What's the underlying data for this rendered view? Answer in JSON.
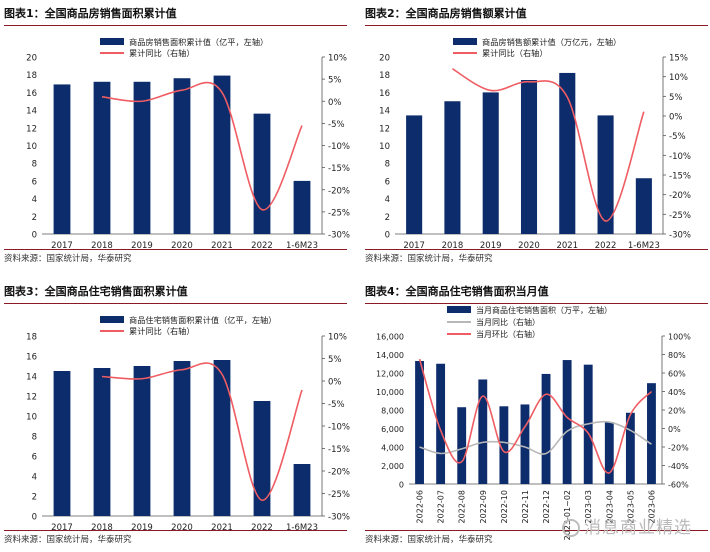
{
  "watermark": "消息商业精选",
  "chart_data": [
    {
      "type": "bar+line",
      "title": "图表1：全国商品房销售面积累计值",
      "source": "资料来源：国家统计局，华泰研究",
      "categories": [
        "2017",
        "2018",
        "2019",
        "2020",
        "2021",
        "2022",
        "1-6M23"
      ],
      "bar_series": {
        "name": "商品房销售面积累计值（亿平，左轴）",
        "values": [
          16.9,
          17.2,
          17.2,
          17.6,
          17.9,
          13.6,
          6.0
        ],
        "color": "#0c2c6b"
      },
      "line_series": {
        "name": "累计同比（右轴）",
        "values": [
          null,
          1.0,
          0.0,
          2.5,
          2.0,
          -24.5,
          -5.5
        ],
        "color": "#ef5d63"
      },
      "left_axis": {
        "ylim": [
          0,
          20
        ],
        "ticks": [
          0,
          2,
          4,
          6,
          8,
          10,
          12,
          14,
          16,
          18,
          20
        ],
        "labels": [
          "0",
          "2",
          "4",
          "6",
          "8",
          "10",
          "12",
          "14",
          "16",
          "18",
          "20"
        ]
      },
      "right_axis": {
        "ylim": [
          -30,
          10
        ],
        "ticks": [
          -30,
          -25,
          -20,
          -15,
          -10,
          -5,
          0,
          5,
          10
        ],
        "labels": [
          "-30%",
          "-25%",
          "-20%",
          "-15%",
          "-10%",
          "-5%",
          "0%",
          "5%",
          "10%"
        ]
      },
      "legend": "top-left"
    },
    {
      "type": "bar+line",
      "title": "图表2：全国商品房销售额累计值",
      "source": "资料来源：国家统计局，华泰研究",
      "categories": [
        "2017",
        "2018",
        "2019",
        "2020",
        "2021",
        "2022",
        "1-6M23"
      ],
      "bar_series": {
        "name": "商品房销售额累计值（万亿元，左轴）",
        "values": [
          13.4,
          15.0,
          16.0,
          17.4,
          18.2,
          13.4,
          6.3
        ],
        "color": "#0c2c6b"
      },
      "line_series": {
        "name": "累计同比（右轴）",
        "values": [
          null,
          12.0,
          6.5,
          8.7,
          4.8,
          -26.7,
          1.1
        ],
        "color": "#ef5d63"
      },
      "left_axis": {
        "ylim": [
          0,
          20
        ],
        "ticks": [
          0,
          2,
          4,
          6,
          8,
          10,
          12,
          14,
          16,
          18,
          20
        ],
        "labels": [
          "0",
          "2",
          "4",
          "6",
          "8",
          "10",
          "12",
          "14",
          "16",
          "18",
          "20"
        ]
      },
      "right_axis": {
        "ylim": [
          -30,
          15
        ],
        "ticks": [
          -30,
          -25,
          -20,
          -15,
          -10,
          -5,
          0,
          5,
          10,
          15
        ],
        "labels": [
          "-30%",
          "-25%",
          "-20%",
          "-15%",
          "-10%",
          "-5%",
          "0%",
          "5%",
          "10%",
          "15%"
        ]
      },
      "legend": "top-left"
    },
    {
      "type": "bar+line",
      "title": "图表3：全国商品住宅销售面积累计值",
      "source": "资料来源：国家统计局，华泰研究",
      "categories": [
        "2017",
        "2018",
        "2019",
        "2020",
        "2021",
        "2022",
        "1-6M23"
      ],
      "bar_series": {
        "name": "商品住宅销售面积累计值（亿平，左轴）",
        "values": [
          14.5,
          14.8,
          15.0,
          15.5,
          15.6,
          11.5,
          5.2
        ],
        "color": "#0c2c6b"
      },
      "line_series": {
        "name": "累计同比（右轴）",
        "values": [
          null,
          1.0,
          0.5,
          2.5,
          1.5,
          -26.5,
          -2.0
        ],
        "color": "#ef5d63"
      },
      "left_axis": {
        "ylim": [
          0,
          18
        ],
        "ticks": [
          0,
          2,
          4,
          6,
          8,
          10,
          12,
          14,
          16,
          18
        ],
        "labels": [
          "0",
          "2",
          "4",
          "6",
          "8",
          "10",
          "12",
          "14",
          "16",
          "18"
        ]
      },
      "right_axis": {
        "ylim": [
          -30,
          10
        ],
        "ticks": [
          -30,
          -25,
          -20,
          -15,
          -10,
          -5,
          0,
          5,
          10
        ],
        "labels": [
          "-30%",
          "-25%",
          "-20%",
          "-15%",
          "-10%",
          "-5%",
          "0%",
          "5%",
          "10%"
        ]
      },
      "legend": "top-left"
    },
    {
      "type": "bar+line",
      "title": "图表4：全国商品住宅销售面积当月值",
      "source": "资料来源：国家统计局，华泰研究",
      "categories": [
        "2022-06",
        "2022-07",
        "2022-08",
        "2022-09",
        "2022-10",
        "2022-11",
        "2022-12",
        "2023-01~02",
        "2023-03",
        "2023-04",
        "2023-05",
        "2023-06"
      ],
      "bar_series": {
        "name": "当月商品住宅销售面积（万平，左轴）",
        "values": [
          13300,
          13000,
          8300,
          11300,
          8400,
          8600,
          11900,
          13400,
          12900,
          6700,
          7700,
          10900
        ],
        "color": "#0c2c6b"
      },
      "line_series": [
        {
          "name": "当月同比（右轴）",
          "values": [
            -20,
            -27,
            -22,
            -15,
            -15,
            -20,
            -27,
            -3,
            5,
            7,
            -2,
            -17
          ],
          "color": "#b8b8b8"
        },
        {
          "name": "当月环比（右轴）",
          "values": [
            75,
            -2,
            -36,
            35,
            -25,
            2,
            37,
            12,
            -5,
            -48,
            15,
            40
          ],
          "color": "#ef5d63"
        }
      ],
      "left_axis": {
        "ylim": [
          0,
          16000
        ],
        "ticks": [
          0,
          2000,
          4000,
          6000,
          8000,
          10000,
          12000,
          14000,
          16000
        ],
        "labels": [
          "0",
          "2,000",
          "4,000",
          "6,000",
          "8,000",
          "10,000",
          "12,000",
          "14,000",
          "16,000"
        ]
      },
      "right_axis": {
        "ylim": [
          -60,
          100
        ],
        "ticks": [
          -60,
          -40,
          -20,
          0,
          20,
          40,
          60,
          80,
          100
        ],
        "labels": [
          "-60%",
          "-40%",
          "-20%",
          "0%",
          "20%",
          "40%",
          "60%",
          "80%",
          "100%"
        ]
      },
      "legend": "top-left"
    }
  ]
}
